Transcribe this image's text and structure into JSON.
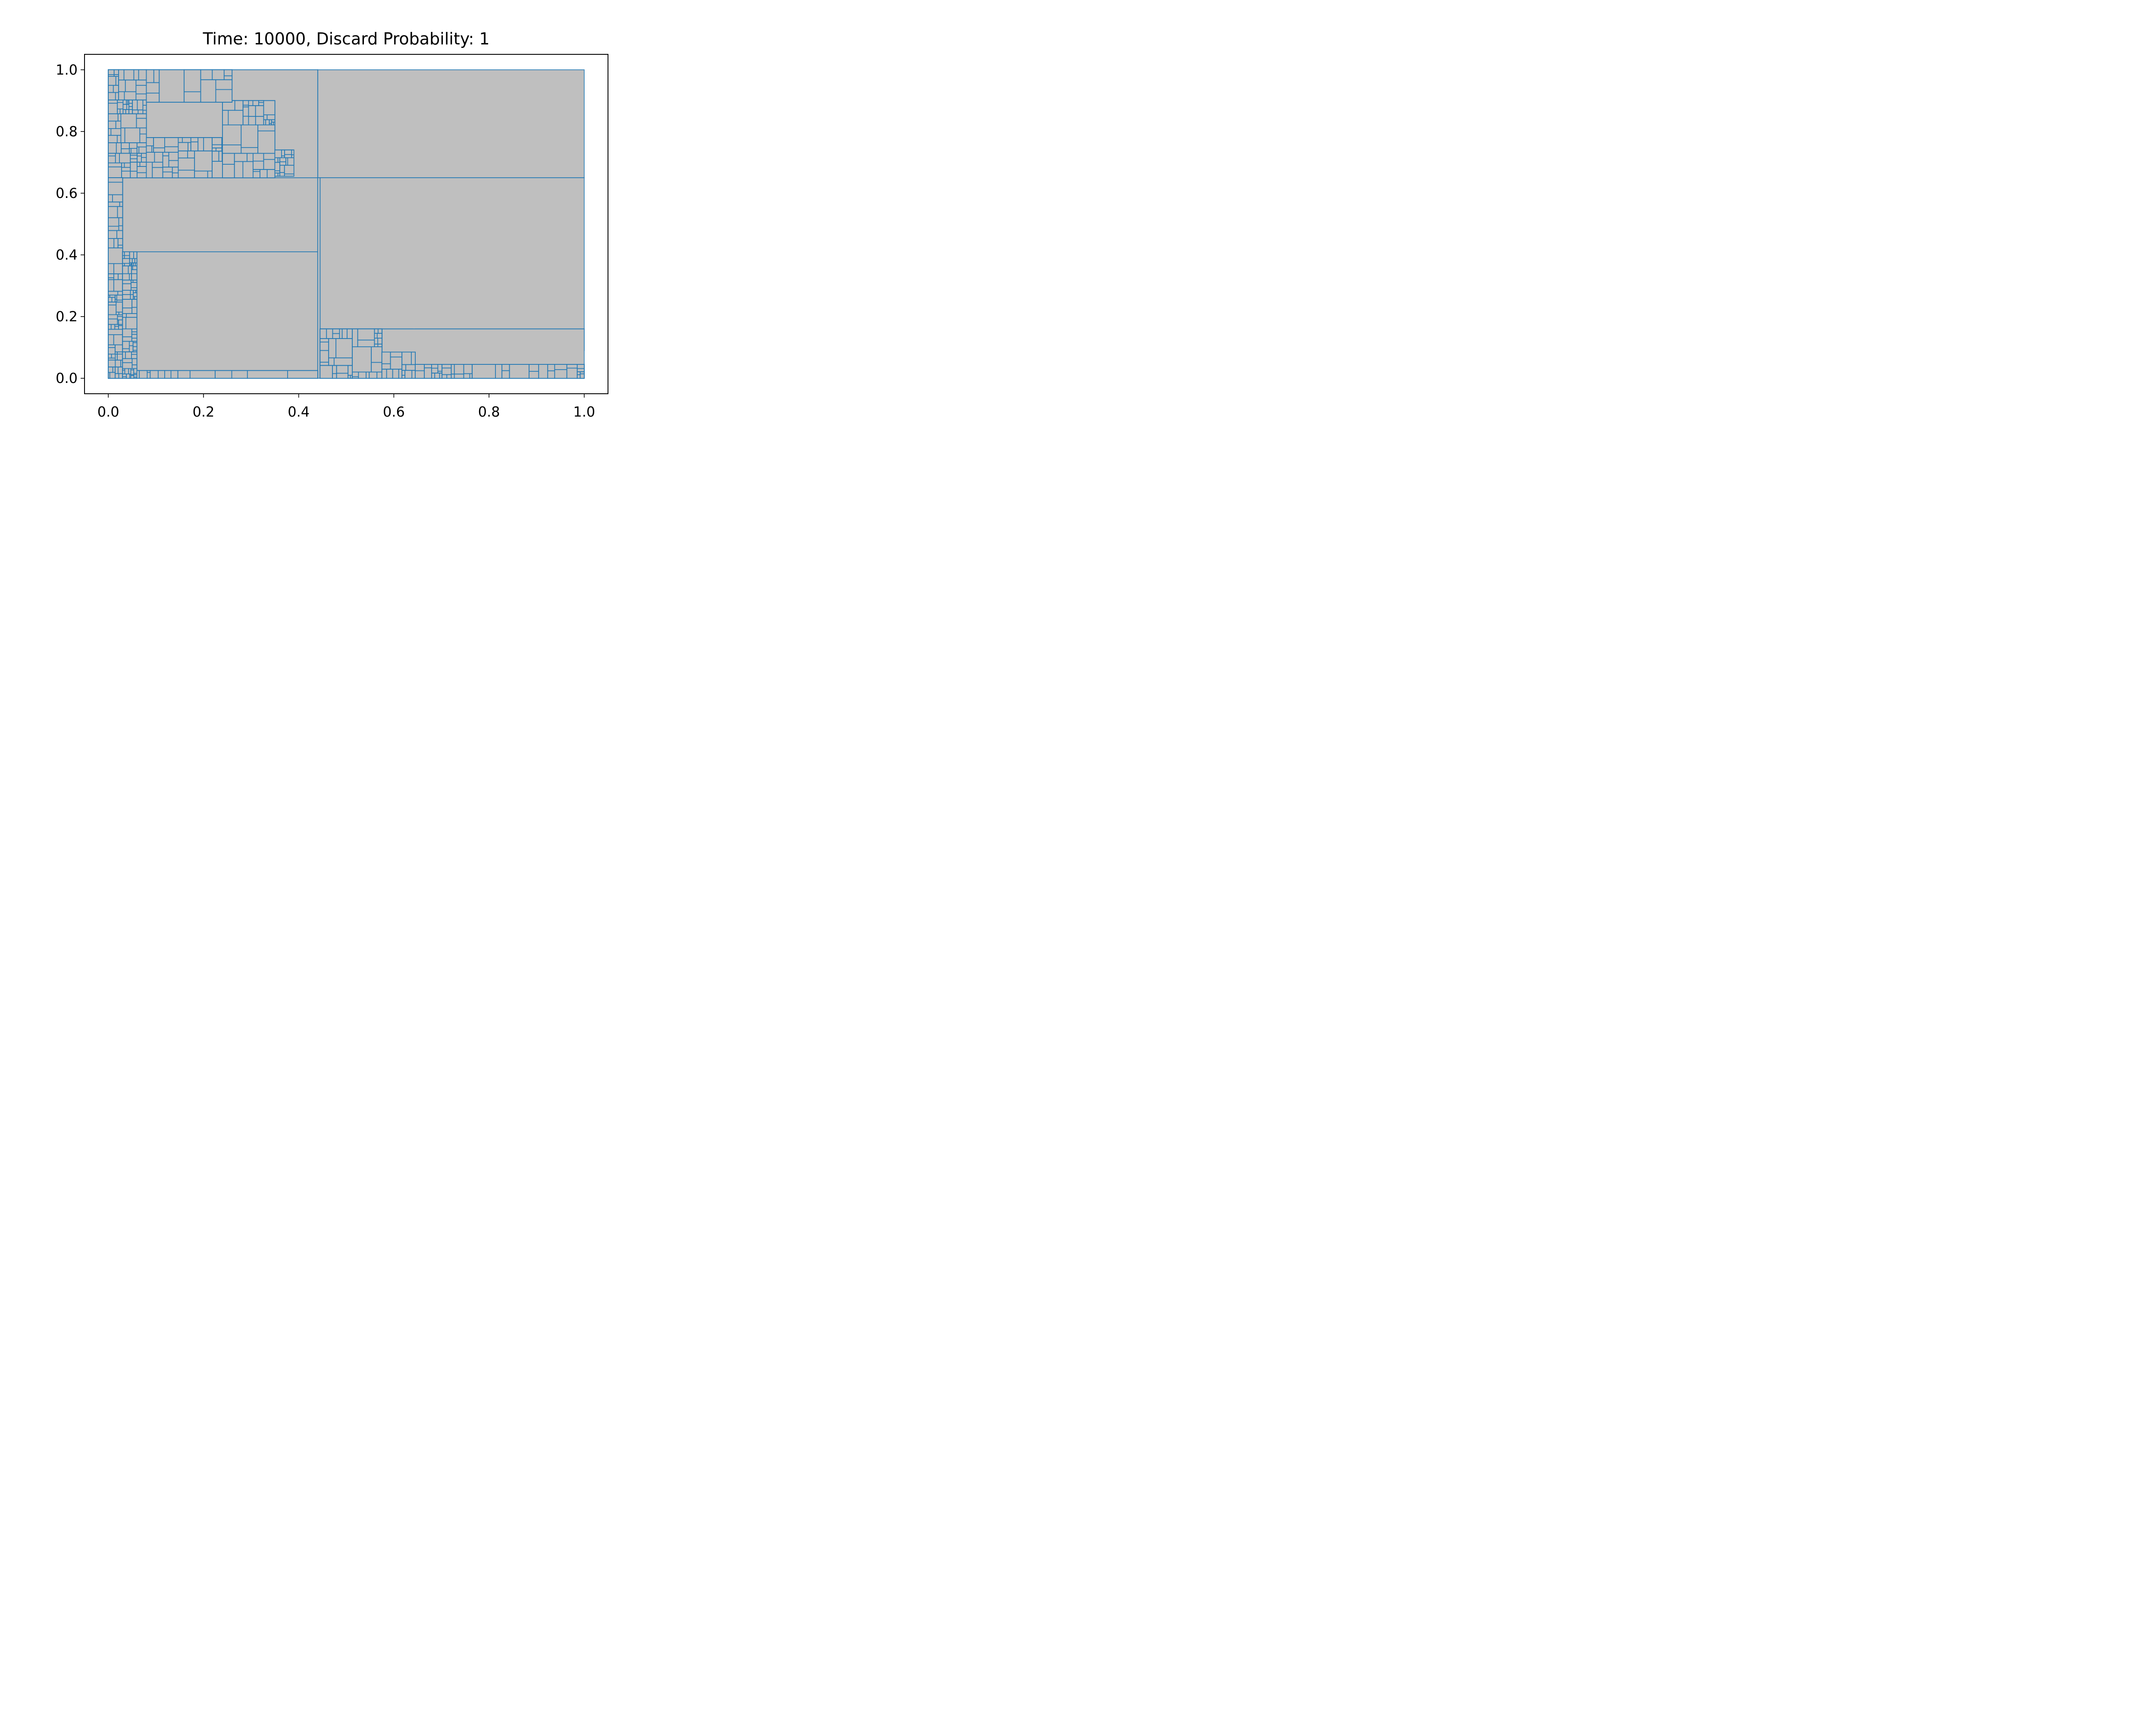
{
  "chart_data": {
    "type": "treemap",
    "title": "Time: 10000, Discard Probability: 1",
    "xlim": [
      -0.05,
      1.05
    ],
    "ylim": [
      -0.05,
      1.05
    ],
    "xticks": [
      "0.0",
      "0.2",
      "0.4",
      "0.6",
      "0.8",
      "1.0"
    ],
    "yticks": [
      "0.0",
      "0.2",
      "0.4",
      "0.6",
      "0.8",
      "1.0"
    ],
    "colors": {
      "fill": "#bfbfbf",
      "edge": "#1f77b4"
    },
    "grid": false,
    "rectangles": [
      {
        "x0": 0.44,
        "y0": 0.65,
        "x1": 1.0,
        "y1": 1.0
      },
      {
        "x0": 0.445,
        "y0": 0.16,
        "x1": 1.0,
        "y1": 0.65
      },
      {
        "x0": 0.03,
        "y0": 0.41,
        "x1": 0.44,
        "y1": 0.65
      },
      {
        "x0": 0.06,
        "y0": 0.025,
        "x1": 0.44,
        "y1": 0.41
      },
      {
        "x0": 0.26,
        "y0": 0.9,
        "x1": 0.44,
        "y1": 1.0
      },
      {
        "x0": 0.35,
        "y0": 0.74,
        "x1": 0.44,
        "y1": 0.9
      },
      {
        "x0": 0.39,
        "y0": 0.655,
        "x1": 0.44,
        "y1": 0.74
      },
      {
        "x0": 0.08,
        "y0": 0.78,
        "x1": 0.26,
        "y1": 0.895
      },
      {
        "x0": 0.09,
        "y0": 0.905,
        "x1": 0.24,
        "y1": 0.98
      },
      {
        "x0": 0.04,
        "y0": 0.8,
        "x1": 0.08,
        "y1": 0.895
      },
      {
        "x0": 0.045,
        "y0": 0.69,
        "x1": 0.08,
        "y1": 0.78
      },
      {
        "x0": 0.02,
        "y0": 0.73,
        "x1": 0.045,
        "y1": 0.77
      },
      {
        "x0": 0.13,
        "y0": 0.68,
        "x1": 0.17,
        "y1": 0.76
      },
      {
        "x0": 0.17,
        "y0": 0.7,
        "x1": 0.205,
        "y1": 0.77
      },
      {
        "x0": 0.21,
        "y0": 0.74,
        "x1": 0.26,
        "y1": 0.77
      },
      {
        "x0": 0.23,
        "y0": 0.69,
        "x1": 0.26,
        "y1": 0.725
      },
      {
        "x0": 0.285,
        "y0": 0.73,
        "x1": 0.33,
        "y1": 0.79
      },
      {
        "x0": 0.305,
        "y0": 0.8,
        "x1": 0.35,
        "y1": 0.88
      },
      {
        "x0": 0.28,
        "y0": 0.7,
        "x1": 0.34,
        "y1": 0.74
      },
      {
        "x0": 0.345,
        "y0": 0.66,
        "x1": 0.39,
        "y1": 0.73
      },
      {
        "x0": 0.575,
        "y0": 0.085,
        "x1": 0.64,
        "y1": 0.125
      },
      {
        "x0": 0.57,
        "y0": 0.135,
        "x1": 0.64,
        "y1": 0.16
      },
      {
        "x0": 0.645,
        "y0": 0.09,
        "x1": 1.0,
        "y1": 0.16
      },
      {
        "x0": 0.65,
        "y0": 0.045,
        "x1": 0.82,
        "y1": 0.085
      },
      {
        "x0": 0.82,
        "y0": 0.045,
        "x1": 0.99,
        "y1": 0.085
      },
      {
        "x0": 0.465,
        "y0": 0.01,
        "x1": 0.57,
        "y1": 0.065
      },
      {
        "x0": 0.575,
        "y0": 0.04,
        "x1": 0.64,
        "y1": 0.075
      },
      {
        "x0": 0.61,
        "y0": 0.01,
        "x1": 0.64,
        "y1": 0.045
      },
      {
        "x0": 0.46,
        "y0": 0.1,
        "x1": 0.57,
        "y1": 0.13
      },
      {
        "x0": 0.53,
        "y0": 0.14,
        "x1": 0.57,
        "y1": 0.16
      },
      {
        "x0": 0.73,
        "y0": 0.005,
        "x1": 0.94,
        "y1": 0.022
      },
      {
        "x0": 0.07,
        "y0": 0.005,
        "x1": 0.165,
        "y1": 0.025
      },
      {
        "x0": 0.245,
        "y0": 0.005,
        "x1": 0.35,
        "y1": 0.02
      },
      {
        "x0": 0.355,
        "y0": 0.005,
        "x1": 0.44,
        "y1": 0.02
      },
      {
        "x0": 0.0,
        "y0": 0.0,
        "x1": 0.03,
        "y1": 0.65
      },
      {
        "x0": 0.03,
        "y0": 0.0,
        "x1": 0.06,
        "y1": 0.41
      },
      {
        "x0": 0.0,
        "y0": 0.65,
        "x1": 0.44,
        "y1": 1.0
      },
      {
        "x0": 0.44,
        "y0": 0.0,
        "x1": 0.445,
        "y1": 0.65
      },
      {
        "x0": 0.445,
        "y0": 0.0,
        "x1": 1.0,
        "y1": 0.16
      }
    ]
  }
}
